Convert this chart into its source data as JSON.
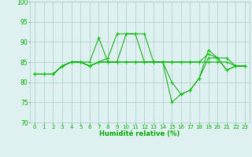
{
  "background_color": "#dff0f0",
  "grid_color": "#aacccc",
  "line_color": "#00aa00",
  "marker_color": "#00cc00",
  "xlabel": "Humidité relative (%)",
  "xlabel_color": "#00aa00",
  "ylabel_color": "#00aa00",
  "ylim": [
    70,
    100
  ],
  "xlim": [
    -0.5,
    23.5
  ],
  "yticks": [
    70,
    75,
    80,
    85,
    90,
    95,
    100
  ],
  "xticks": [
    0,
    1,
    2,
    3,
    4,
    5,
    6,
    7,
    8,
    9,
    10,
    11,
    12,
    13,
    14,
    15,
    16,
    17,
    18,
    19,
    20,
    21,
    22,
    23
  ],
  "series": [
    [
      82,
      82,
      82,
      84,
      85,
      85,
      85,
      91,
      85,
      85,
      92,
      92,
      92,
      85,
      85,
      80,
      77,
      78,
      81,
      86,
      86,
      83,
      84,
      84
    ],
    [
      82,
      82,
      82,
      84,
      85,
      85,
      84,
      85,
      86,
      92,
      92,
      92,
      85,
      85,
      85,
      75,
      77,
      78,
      81,
      88,
      86,
      83,
      84,
      84
    ],
    [
      82,
      82,
      82,
      84,
      85,
      85,
      84,
      85,
      85,
      85,
      85,
      85,
      85,
      85,
      85,
      85,
      85,
      85,
      85,
      85,
      85,
      85,
      84,
      84
    ],
    [
      82,
      82,
      82,
      84,
      85,
      85,
      84,
      85,
      85,
      85,
      85,
      85,
      85,
      85,
      85,
      85,
      85,
      85,
      85,
      87,
      86,
      86,
      84,
      84
    ]
  ]
}
